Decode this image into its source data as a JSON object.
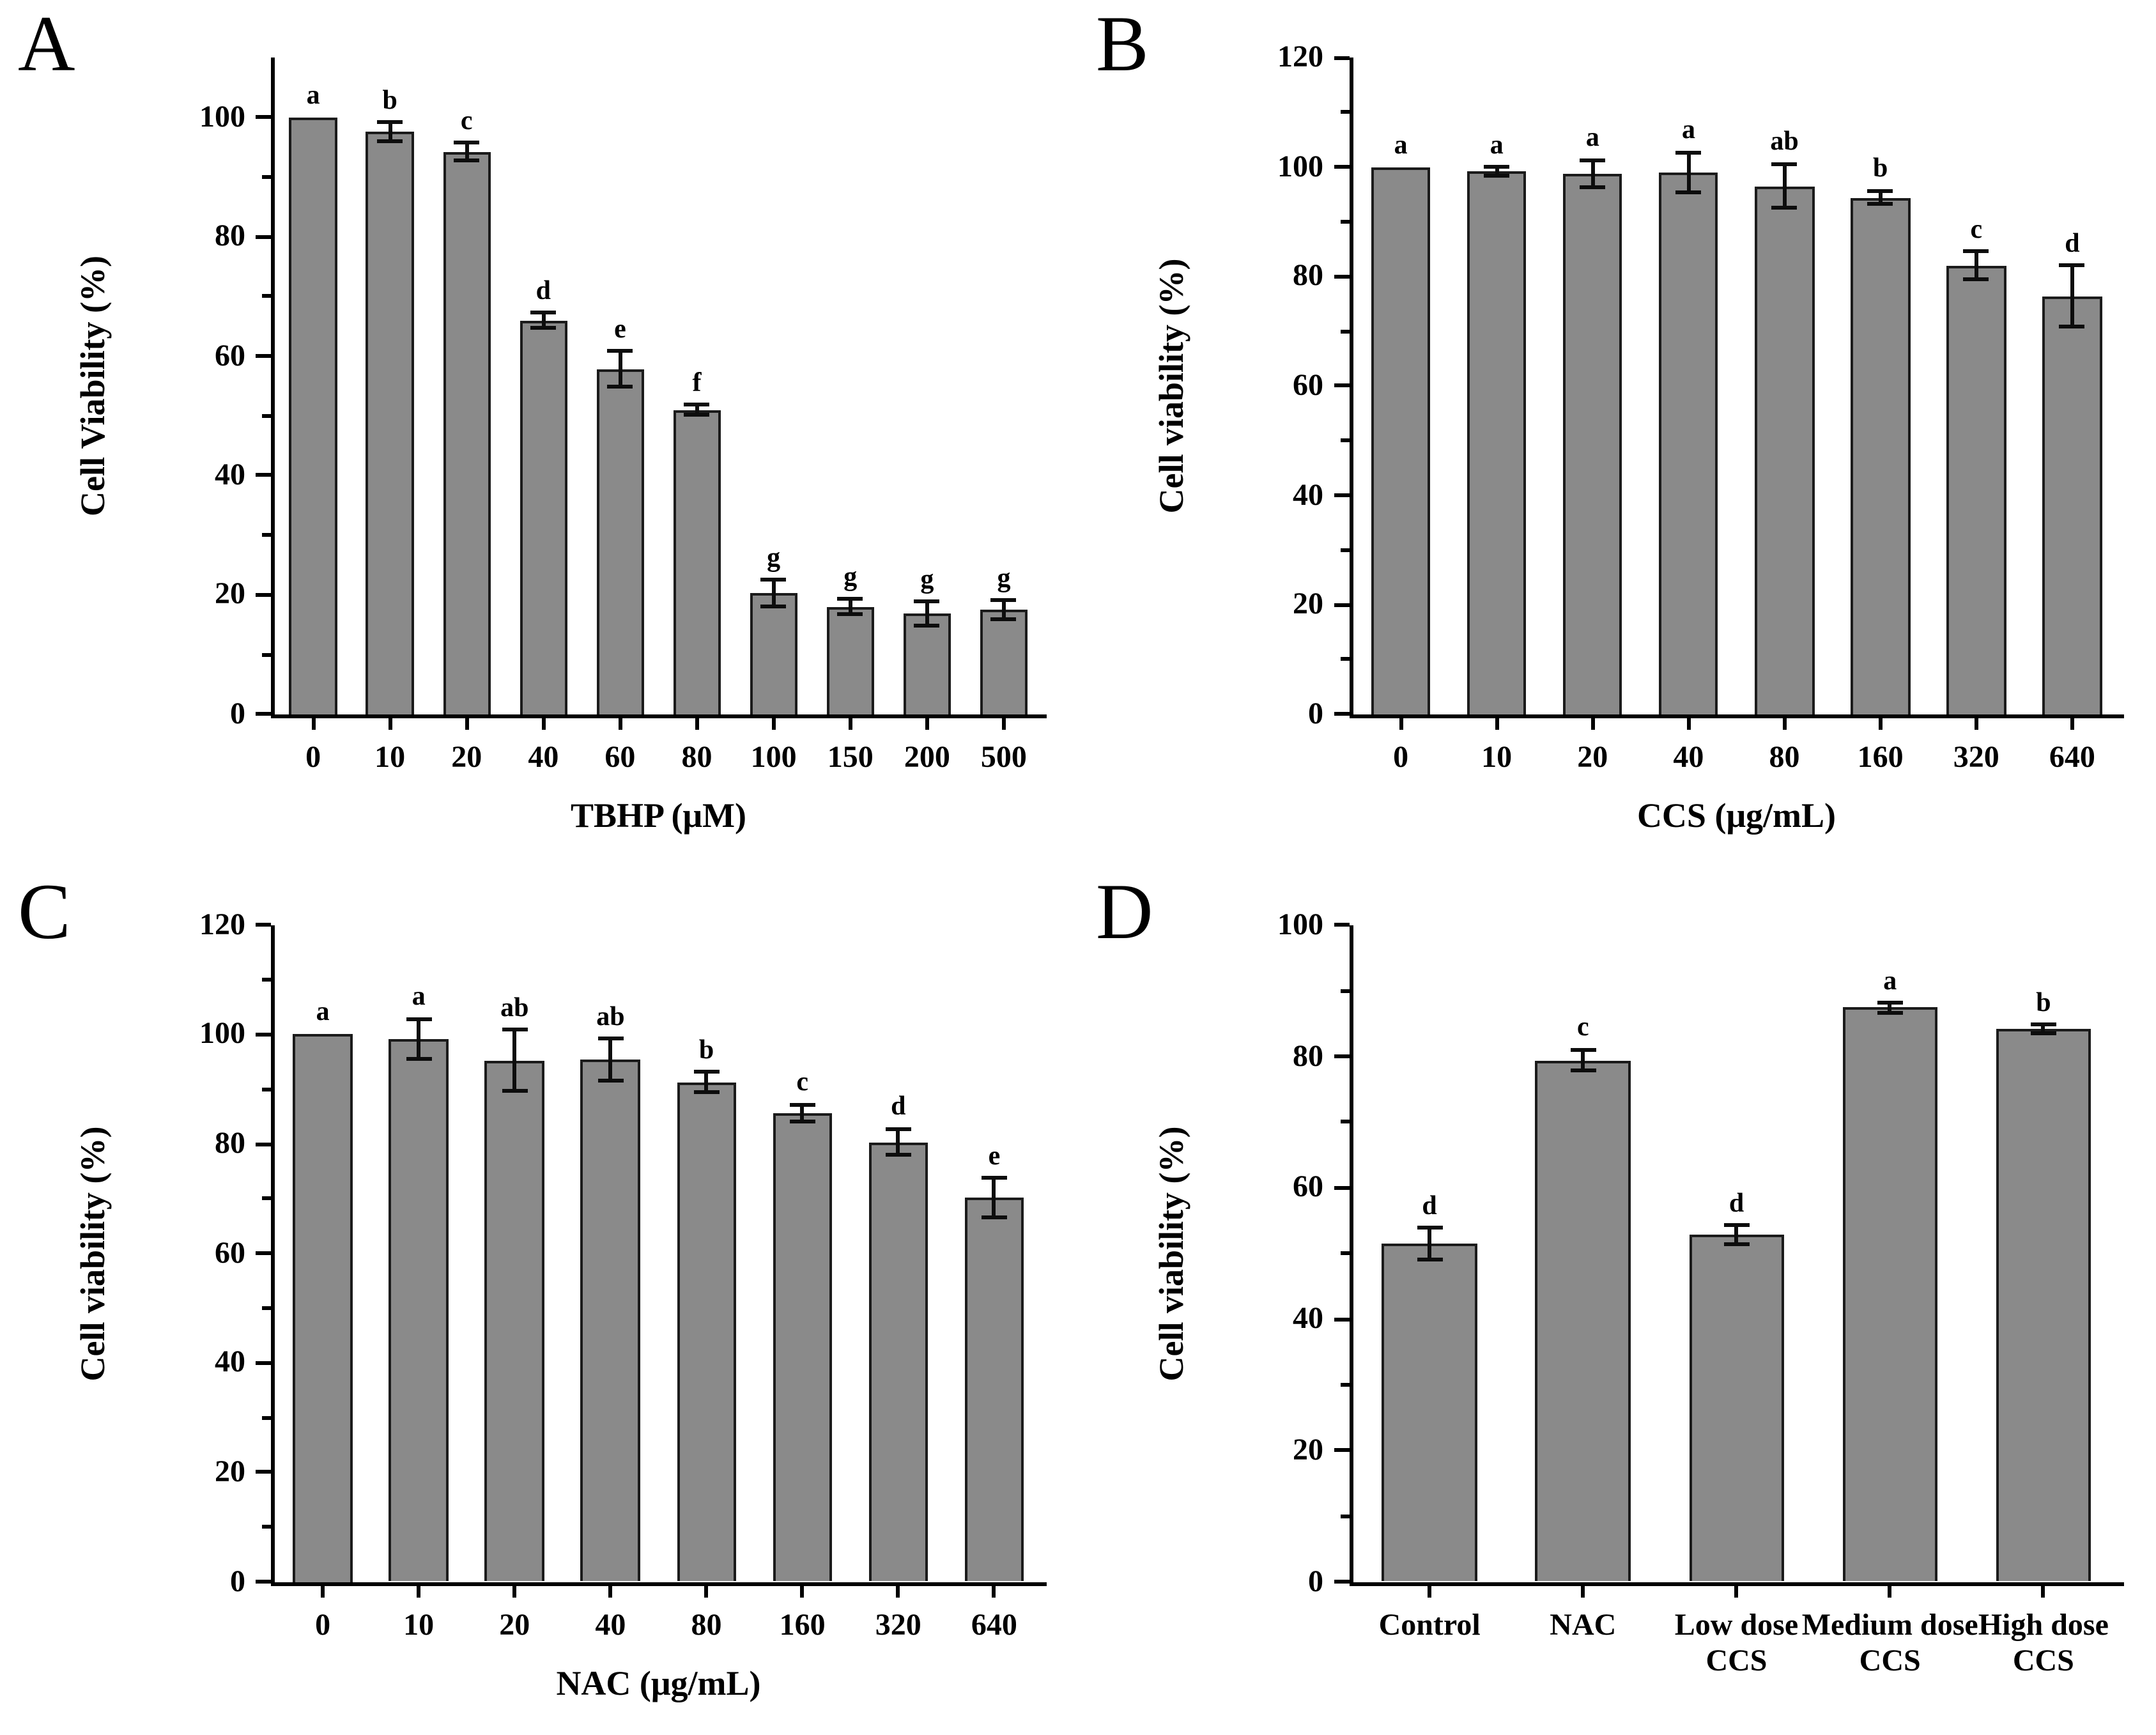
{
  "figure": {
    "background": "#ffffff",
    "bar_fill": "#8a8a8a",
    "bar_border": "#1b1b1b",
    "axis_color": "#000000",
    "error_bar_color": "#0d0d0d"
  },
  "chart_data": [
    {
      "id": "A",
      "type": "bar",
      "panel_label": "A",
      "xlabel": "TBHP (μM)",
      "ylabel": "Cell Viability (%)",
      "ylim": [
        0,
        110
      ],
      "ytick_step": 20,
      "minor_tick_step": 20,
      "grid": "off",
      "legend": "none",
      "categories": [
        "0",
        "10",
        "20",
        "40",
        "60",
        "80",
        "100",
        "150",
        "200",
        "500"
      ],
      "values": [
        100,
        97.5,
        94.2,
        66,
        57.8,
        51,
        20.3,
        18,
        16.8,
        17.5
      ],
      "errors": [
        0,
        1.6,
        1.5,
        1.2,
        3,
        0.8,
        2.2,
        1.3,
        2,
        1.6
      ],
      "letters": [
        "a",
        "b",
        "c",
        "d",
        "e",
        "f",
        "g",
        "g",
        "g",
        "g"
      ]
    },
    {
      "id": "B",
      "type": "bar",
      "panel_label": "B",
      "xlabel": "CCS (μg/mL)",
      "ylabel": "Cell viability (%)",
      "ylim": [
        0,
        120
      ],
      "ytick_step": 20,
      "minor_tick_step": 20,
      "grid": "off",
      "legend": "none",
      "categories": [
        "0",
        "10",
        "20",
        "40",
        "80",
        "160",
        "320",
        "640"
      ],
      "values": [
        100,
        99.2,
        98.8,
        99,
        96.5,
        94.4,
        82,
        76.4
      ],
      "errors": [
        0,
        0.8,
        2.4,
        3.6,
        4,
        1.2,
        2.6,
        5.6
      ],
      "letters": [
        "a",
        "a",
        "a",
        "a",
        "ab",
        "b",
        "c",
        "d"
      ]
    },
    {
      "id": "C",
      "type": "bar",
      "panel_label": "C",
      "xlabel": "NAC (μg/mL)",
      "ylabel": "Cell viability (%)",
      "ylim": [
        0,
        120
      ],
      "ytick_step": 20,
      "minor_tick_step": 20,
      "grid": "off",
      "legend": "none",
      "categories": [
        "0",
        "10",
        "20",
        "40",
        "80",
        "160",
        "320",
        "640"
      ],
      "values": [
        100,
        99.2,
        95.2,
        95.4,
        91.3,
        85.7,
        80.3,
        70.1
      ],
      "errors": [
        0,
        3.6,
        5.6,
        3.8,
        1.8,
        1.5,
        2.4,
        3.6
      ],
      "letters": [
        "a",
        "a",
        "ab",
        "ab",
        "b",
        "c",
        "d",
        "e"
      ]
    },
    {
      "id": "D",
      "type": "bar",
      "panel_label": "D",
      "xlabel": "",
      "ylabel": "Cell viability (%)",
      "ylim": [
        0,
        100
      ],
      "ytick_step": 20,
      "minor_tick_step": 20,
      "grid": "off",
      "legend": "none",
      "categories": [
        "Control",
        "NAC",
        "Low dose\nCCS",
        "Medium dose\nCCS",
        "High dose\nCCS"
      ],
      "values": [
        51.5,
        79.4,
        52.8,
        87.4,
        84.2
      ],
      "errors": [
        2.4,
        1.6,
        1.5,
        0.7,
        0.6
      ],
      "letters": [
        "d",
        "c",
        "d",
        "a",
        "b"
      ]
    }
  ]
}
